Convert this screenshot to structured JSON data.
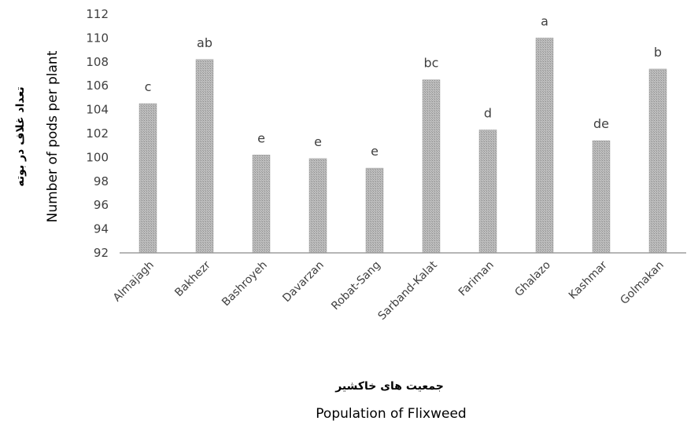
{
  "chart_data": {
    "type": "bar",
    "categories": [
      "Almajagh",
      "Bakhezr",
      "Bashroyeh",
      "Davarzan",
      "Robat-Sang",
      "Sarband-Kalat",
      "Fariman",
      "Ghalazo",
      "Kashmar",
      "Golmakan"
    ],
    "values": [
      104.5,
      108.2,
      100.2,
      99.9,
      99.1,
      106.5,
      102.3,
      110.0,
      101.4,
      107.4
    ],
    "letters": [
      "c",
      "ab",
      "e",
      "e",
      "e",
      "bc",
      "d",
      "a",
      "de",
      "b"
    ],
    "ylim": [
      92,
      112
    ],
    "yticks": [
      92,
      94,
      96,
      98,
      100,
      102,
      104,
      106,
      108,
      110,
      112
    ],
    "ylabel_en": "Number of pods per plant",
    "ylabel_fa": "تعداد غلاف در بوته",
    "xlabel_en": "Population of Flixweed",
    "xlabel_fa": "جمعیت های خاکشیر",
    "grid": false,
    "bar_color": "#a6a6a6"
  }
}
